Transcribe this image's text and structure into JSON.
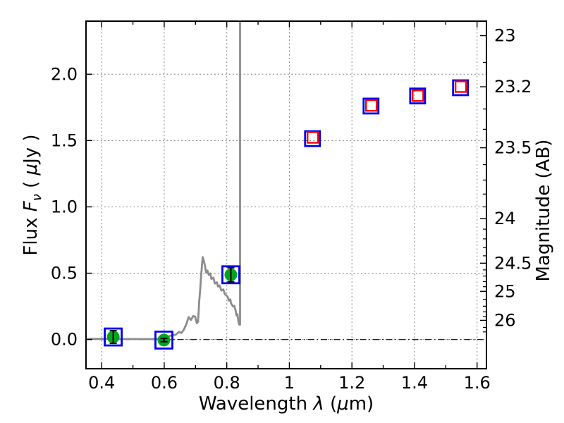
{
  "figure": {
    "background": "#ffffff"
  },
  "chart_data": {
    "type": "line+scatter",
    "title": "",
    "description": "Galaxy SED: model spectrum (grey line) with photometric data points; flux vs wavelength, AB magnitude on right axis",
    "axes": {
      "x": {
        "label_parts": [
          {
            "t": "Wavelength  ",
            "i": false
          },
          {
            "t": "λ",
            "i": true
          },
          {
            "t": " (",
            "i": false
          },
          {
            "t": "μ",
            "i": true
          },
          {
            "t": "m)",
            "i": false
          }
        ],
        "lim": [
          0.35,
          1.63
        ],
        "major_ticks": [
          0.4,
          0.6,
          0.8,
          1.0,
          1.2,
          1.4,
          1.6
        ],
        "major_labels": [
          "0.4",
          "0.6",
          "0.8",
          "1",
          "1.2",
          "1.4",
          "1.6"
        ],
        "minor_ticks": [
          0.5,
          0.7,
          0.9,
          1.1,
          1.3,
          1.5
        ]
      },
      "y_left": {
        "label_parts": [
          {
            "t": "Flux  ",
            "i": false
          },
          {
            "t": "F",
            "i": true
          },
          {
            "t": "ν",
            "i": true,
            "sub": true
          },
          {
            "t": "  ( ",
            "i": false
          },
          {
            "t": "μ",
            "i": true
          },
          {
            "t": "Jy )",
            "i": false
          }
        ],
        "lim": [
          -0.22,
          2.4
        ],
        "major_ticks": [
          0.0,
          0.5,
          1.0,
          1.5,
          2.0
        ],
        "major_labels": [
          "0.0",
          "0.5",
          "1.0",
          "1.5",
          "2.0"
        ],
        "minor_ticks": []
      },
      "y_right": {
        "label_parts": [
          {
            "t": "Magnitude (AB)",
            "i": false
          }
        ],
        "ab_zeropoint_ujy": 23.9,
        "major_ticks": [
          23,
          23.2,
          23.5,
          24,
          24.5,
          25,
          26
        ],
        "major_labels": [
          "23",
          "23.2",
          "23.5",
          "24",
          "24.5",
          "25",
          "26"
        ],
        "minor_ticks": [
          23.1,
          23.3,
          23.4,
          23.6,
          23.7,
          23.8,
          23.9,
          24.1,
          24.2,
          24.3,
          24.4,
          24.6,
          24.7,
          24.8,
          24.9,
          25.2,
          25.4,
          25.6,
          25.8,
          26.5,
          27.0
        ]
      }
    },
    "grid": {
      "show": true,
      "color": "#777777",
      "style": "dotted"
    },
    "zero_line": {
      "flux": 0.0,
      "color": "#222222",
      "style": "dash-dot"
    },
    "spectrum": {
      "color": "#8c8c8c",
      "line_width": 2.8,
      "points": [
        [
          0.353,
          0.005
        ],
        [
          0.4,
          0.005
        ],
        [
          0.45,
          0.004
        ],
        [
          0.5,
          0.004
        ],
        [
          0.55,
          0.003
        ],
        [
          0.585,
          0.006
        ],
        [
          0.602,
          0.012
        ],
        [
          0.618,
          0.027
        ],
        [
          0.637,
          0.037
        ],
        [
          0.648,
          0.058
        ],
        [
          0.655,
          0.049
        ],
        [
          0.663,
          0.076
        ],
        [
          0.67,
          0.112
        ],
        [
          0.678,
          0.169
        ],
        [
          0.685,
          0.147
        ],
        [
          0.693,
          0.177
        ],
        [
          0.699,
          0.172
        ],
        [
          0.704,
          0.124
        ],
        [
          0.708,
          0.133
        ],
        [
          0.712,
          0.289
        ],
        [
          0.715,
          0.378
        ],
        [
          0.718,
          0.484
        ],
        [
          0.723,
          0.622
        ],
        [
          0.727,
          0.59
        ],
        [
          0.73,
          0.558
        ],
        [
          0.734,
          0.505
        ],
        [
          0.738,
          0.52
        ],
        [
          0.742,
          0.488
        ],
        [
          0.747,
          0.498
        ],
        [
          0.751,
          0.457
        ],
        [
          0.757,
          0.466
        ],
        [
          0.762,
          0.422
        ],
        [
          0.768,
          0.431
        ],
        [
          0.772,
          0.399
        ],
        [
          0.777,
          0.408
        ],
        [
          0.783,
          0.369
        ],
        [
          0.789,
          0.378
        ],
        [
          0.794,
          0.342
        ],
        [
          0.802,
          0.324
        ],
        [
          0.807,
          0.293
        ],
        [
          0.811,
          0.303
        ],
        [
          0.814,
          0.271
        ],
        [
          0.82,
          0.248
        ],
        [
          0.824,
          0.254
        ],
        [
          0.828,
          0.222
        ],
        [
          0.831,
          0.182
        ],
        [
          0.834,
          0.191
        ],
        [
          0.837,
          0.138
        ],
        [
          0.84,
          0.112
        ],
        [
          0.8425,
          0.112
        ],
        [
          0.8425,
          2.45
        ]
      ]
    },
    "photometry": {
      "detections": [
        {
          "lambda": 0.437,
          "flux": 0.019,
          "err": 0.048
        },
        {
          "lambda": 0.599,
          "flux": -0.004,
          "err": 0.012
        },
        {
          "lambda": 0.813,
          "flux": 0.488,
          "err": 0.053
        }
      ],
      "blue_squares": [
        {
          "lambda": 0.437,
          "flux": 0.019,
          "size": 24
        },
        {
          "lambda": 0.599,
          "flux": -0.004,
          "size": 24
        },
        {
          "lambda": 0.813,
          "flux": 0.488,
          "size": 24
        },
        {
          "lambda": 1.074,
          "flux": 1.514,
          "size": 21
        },
        {
          "lambda": 1.261,
          "flux": 1.76,
          "size": 21
        },
        {
          "lambda": 1.41,
          "flux": 1.836,
          "size": 21
        },
        {
          "lambda": 1.547,
          "flux": 1.898,
          "size": 21
        }
      ],
      "red_squares": [
        {
          "lambda": 1.075,
          "flux": 1.523
        },
        {
          "lambda": 1.262,
          "flux": 1.764
        },
        {
          "lambda": 1.411,
          "flux": 1.838
        },
        {
          "lambda": 1.548,
          "flux": 1.906
        }
      ]
    },
    "style": {
      "detection_color": "#00a420",
      "blue_marker_color": "#0000ee",
      "red_marker_color": "#ff0000",
      "errorbar_color": "#000000",
      "frame_color": "#000000",
      "green_diameter": 18,
      "red_size": 15
    }
  }
}
